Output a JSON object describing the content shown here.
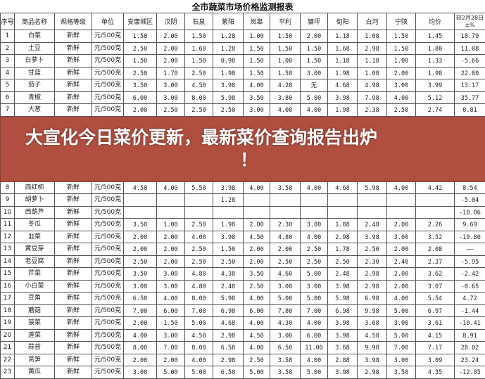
{
  "title": "全市蔬菜市场价格监测报表",
  "headers": [
    "序号",
    "商品名称",
    "规格等级",
    "单位",
    "安康城区",
    "汉阴",
    "石泉",
    "紫阳",
    "岚皋",
    "平利",
    "镇坪",
    "旬阳",
    "白河",
    "宁陕",
    "均价",
    "较2月28日±%"
  ],
  "rows": [
    [
      "1",
      "白菜",
      "新鲜",
      "元/500克",
      "1.50",
      "2.00",
      "1.50",
      "1.28",
      "1.00",
      "1.50",
      "2.00",
      "1.18",
      "1.08",
      "1.50",
      "1.45",
      "18.79"
    ],
    [
      "2",
      "土豆",
      "新鲜",
      "元/500克",
      "2.50",
      "2.00",
      "1.60",
      "1.28",
      "1.50",
      "1.50",
      "1.50",
      "1.68",
      "2.98",
      "1.50",
      "1.80",
      "11.08"
    ],
    [
      "3",
      "白萝卜",
      "新鲜",
      "元/500克",
      "1.50",
      "2.00",
      "1.50",
      "0.98",
      "1.50",
      "1.00",
      "1.50",
      "1.18",
      "1.18",
      "1.00",
      "1.33",
      "-5.66"
    ],
    [
      "4",
      "甘蓝",
      "新鲜",
      "元/500克",
      "2.50",
      "1.70",
      "2.50",
      "1.98",
      "1.50",
      "1.58",
      "3.00",
      "1.98",
      "1.08",
      "2.00",
      "1.98",
      "22.80"
    ],
    [
      "5",
      "茄子",
      "新鲜",
      "元/500克",
      "3.50",
      "3.00",
      "4.50",
      "3.98",
      "4.00",
      "4.28",
      "无",
      "4.68",
      "4.98",
      "3.00",
      "3.99",
      "13.17"
    ],
    [
      "6",
      "青椒",
      "新鲜",
      "元/500克",
      "6.00",
      "3.00",
      "8.00",
      "5.98",
      "3.50",
      "3.80",
      "5.00",
      "3.98",
      "7.98",
      "4.00",
      "5.12",
      "35.77"
    ],
    [
      "7",
      "大葱",
      "新鲜",
      "元/500克",
      "2.00",
      "2.50",
      "2.50",
      "2.50",
      "3.00",
      "4.00",
      "4.00",
      "1.98",
      "2.38",
      "2.50",
      "2.74",
      "0.81"
    ],
    [
      "8",
      "西红柿",
      "新鲜",
      "元/500克",
      "4.50",
      "4.00",
      "5.50",
      "3.98",
      "4.00",
      "3.58",
      "4.00",
      "4.68",
      "5.98",
      "4.00",
      "4.42",
      "8.54"
    ],
    [
      "9",
      "胡萝卜",
      "新鲜",
      "元/500克",
      "",
      "",
      "",
      "1.28",
      "",
      "",
      "",
      "",
      "",
      "",
      "",
      "-5.04"
    ],
    [
      "10",
      "西葫芦",
      "新鲜",
      "元/500克",
      "",
      "",
      "",
      "",
      "",
      "",
      "",
      "",
      "",
      "",
      "",
      "-10.06"
    ],
    [
      "11",
      "冬瓜",
      "新鲜",
      "元/500克",
      "3.50",
      "1.00",
      "2.50",
      "1.98",
      "2.00",
      "2.30",
      "3.00",
      "1.88",
      "2.48",
      "2.00",
      "2.26",
      "9.69"
    ],
    [
      "12",
      "韭菜",
      "新鲜",
      "元/500克",
      "2.00",
      "2.00",
      "4.00",
      "3.98",
      "4.50",
      "4.80",
      "4.00",
      "2.98",
      "3.98",
      "3.00",
      "3.52",
      "-19.80"
    ],
    [
      "13",
      "黄豆芽",
      "新鲜",
      "元/500克",
      "2.00",
      "2.00",
      "2.50",
      "1.50",
      "2.00",
      "2.00",
      "2.50",
      "1.78",
      "2.50",
      "2.00",
      "2.08",
      "——"
    ],
    [
      "14",
      "老豆腐",
      "新鲜",
      "元/500克",
      "2.50",
      "2.00",
      "2.50",
      "2.50",
      "2.00",
      "2.50",
      "2.50",
      "2.50",
      "2.30",
      "2.40",
      "2.37",
      "-5.95"
    ],
    [
      "15",
      "芹菜",
      "新鲜",
      "元/500克",
      "3.50",
      "3.00",
      "4.80",
      "4.38",
      "3.50",
      "4.60",
      "5.00",
      "2.48",
      "2.98",
      "2.00",
      "3.62",
      "-2.42"
    ],
    [
      "16",
      "小白菜",
      "新鲜",
      "元/500克",
      "3.00",
      "3.00",
      "4.80",
      "2.48",
      "2.50",
      "3.00",
      "3.00",
      "3.98",
      "2.98",
      "2.00",
      "3.07",
      "-0.65"
    ],
    [
      "17",
      "豆角",
      "新鲜",
      "元/500克",
      "6.50",
      "4.00",
      "8.00",
      "5.98",
      "4.00",
      "5.00",
      "5.00",
      "5.98",
      "6.98",
      "4.00",
      "5.54",
      "4.72"
    ],
    [
      "18",
      "蘑菇",
      "新鲜",
      "元/500克",
      "7.00",
      "6.00",
      "7.00",
      "6.98",
      "6.00",
      "7.80",
      "7.00",
      "6.98",
      "9.98",
      "5.00",
      "6.97",
      "-1.44"
    ],
    [
      "19",
      "菠菜",
      "新鲜",
      "元/500克",
      "2.00",
      "1.50",
      "5.00",
      "4.68",
      "4.00",
      "4.30",
      "4.00",
      "3.98",
      "3.68",
      "3.00",
      "3.61",
      "-10.41"
    ],
    [
      "20",
      "莲菜",
      "新鲜",
      "元/500克",
      "4.00",
      "3.00",
      "4.50",
      "2.98",
      "4.50",
      "3.00",
      "6.00",
      "3.98",
      "4.58",
      "5.00",
      "4.15",
      "8.91"
    ],
    [
      "21",
      "蒜苔",
      "新鲜",
      "元/500克",
      "8.00",
      "7.00",
      "8.00",
      "6.58",
      "4.00",
      "6.50",
      "11.00",
      "3.68",
      "9.98",
      "7.00",
      "7.17",
      "28.02"
    ],
    [
      "22",
      "莴笋",
      "新鲜",
      "元/500克",
      "2.00",
      "2.00",
      "4.00",
      "2.98",
      "2.50",
      "3.58",
      "4.00",
      "2.88",
      "3.98",
      "3.00",
      "3.09",
      "23.24"
    ],
    [
      "23",
      "黄瓜",
      "新鲜",
      "元/500克",
      "3.00",
      "5.00",
      "5.00",
      "6.50",
      "5.00",
      "3.58",
      "5.00",
      "3.98",
      "2.98",
      "3.50",
      "4.35",
      "-12.85"
    ]
  ],
  "banner": {
    "line1": "大宣化今日菜价更新，最新菜价查询报告出炉",
    "line2": "！",
    "color": "#b04e40"
  }
}
